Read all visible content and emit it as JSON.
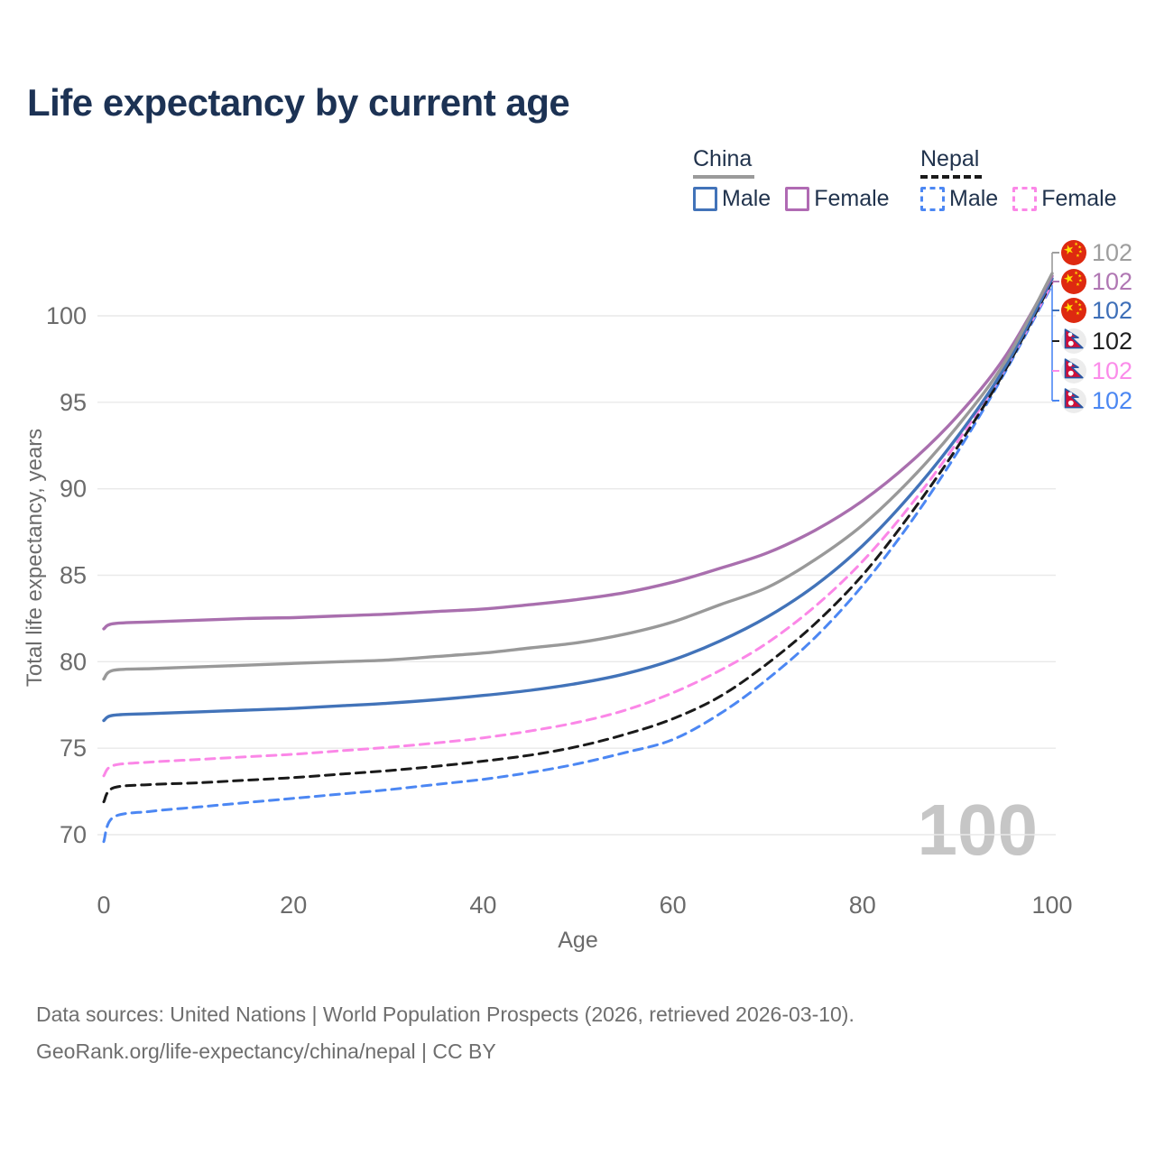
{
  "title": "Life expectancy by current age",
  "legend": {
    "groups": [
      {
        "name": "China",
        "line_style": "solid",
        "underline_color": "#9a9a9a",
        "items": [
          {
            "label": "Male",
            "color": "#4273b9",
            "dashed": false,
            "checked": false
          },
          {
            "label": "Female",
            "color": "#b06ab3",
            "dashed": false,
            "checked": false
          }
        ]
      },
      {
        "name": "Nepal",
        "line_style": "dashed",
        "underline_color": "#1a1a1a",
        "items": [
          {
            "label": "Male",
            "color": "#4c87f3",
            "dashed": true,
            "checked": false
          },
          {
            "label": "Female",
            "color": "#fb87e7",
            "dashed": true,
            "checked": false
          }
        ]
      }
    ]
  },
  "chart_data": {
    "type": "line",
    "title": "Life expectancy by current age",
    "xlabel": "Age",
    "ylabel": "Total life expectancy, years",
    "x_ticks": [
      0,
      20,
      40,
      60,
      80,
      100
    ],
    "y_ticks": [
      70,
      75,
      80,
      85,
      90,
      95,
      100
    ],
    "xlim": [
      0,
      100
    ],
    "ylim": [
      69,
      103
    ],
    "grid": "horizontal",
    "grid_color": "#e9e9e9",
    "axis_text_color": "#6b6b6b",
    "watermark": "100",
    "watermark_color": "#c6c6c6",
    "x": [
      0,
      1,
      5,
      10,
      15,
      20,
      25,
      30,
      35,
      40,
      45,
      50,
      55,
      60,
      65,
      70,
      75,
      80,
      85,
      90,
      95,
      100
    ],
    "series": [
      {
        "id": "china-all",
        "country": "China",
        "sex": "All",
        "color": "#999999",
        "dashed": false,
        "flag": "china",
        "end_label": "102",
        "label_color": "#9e9e9e",
        "values": [
          79.0,
          79.5,
          79.6,
          79.7,
          79.8,
          79.9,
          80.0,
          80.1,
          80.3,
          80.5,
          80.8,
          81.1,
          81.6,
          82.3,
          83.3,
          84.3,
          85.9,
          87.9,
          90.5,
          93.6,
          97.3,
          102.45
        ]
      },
      {
        "id": "china-female",
        "country": "China",
        "sex": "Female",
        "color": "#a96fae",
        "dashed": false,
        "flag": "china",
        "end_label": "102",
        "label_color": "#b077b3",
        "values": [
          81.9,
          82.2,
          82.3,
          82.4,
          82.5,
          82.55,
          82.65,
          82.75,
          82.9,
          83.05,
          83.3,
          83.6,
          84.0,
          84.6,
          85.4,
          86.3,
          87.6,
          89.3,
          91.5,
          94.2,
          97.6,
          102.3
        ]
      },
      {
        "id": "china-male",
        "country": "China",
        "sex": "Male",
        "color": "#4273b9",
        "dashed": false,
        "flag": "china",
        "end_label": "102",
        "label_color": "#3e6fb8",
        "values": [
          76.6,
          76.9,
          77.0,
          77.1,
          77.2,
          77.3,
          77.45,
          77.6,
          77.8,
          78.05,
          78.35,
          78.75,
          79.3,
          80.1,
          81.2,
          82.6,
          84.4,
          86.7,
          89.6,
          93.0,
          97.0,
          102.15
        ]
      },
      {
        "id": "nepal-all",
        "country": "Nepal",
        "sex": "All",
        "color": "#1a1a1a",
        "dashed": true,
        "flag": "nepal",
        "end_label": "102",
        "label_color": "#1f1f1f",
        "values": [
          71.9,
          72.7,
          72.9,
          73.0,
          73.15,
          73.3,
          73.5,
          73.7,
          73.95,
          74.25,
          74.6,
          75.1,
          75.8,
          76.7,
          78.0,
          79.9,
          82.2,
          85.0,
          88.5,
          92.4,
          96.8,
          102.0
        ]
      },
      {
        "id": "nepal-female",
        "country": "Nepal",
        "sex": "Female",
        "color": "#fb87e7",
        "dashed": true,
        "flag": "nepal",
        "end_label": "102",
        "label_color": "#fb8cea",
        "values": [
          73.4,
          74.0,
          74.2,
          74.35,
          74.5,
          74.65,
          74.85,
          75.05,
          75.3,
          75.6,
          76.0,
          76.5,
          77.2,
          78.2,
          79.5,
          81.1,
          83.2,
          85.8,
          89.0,
          92.7,
          96.9,
          101.9
        ]
      },
      {
        "id": "nepal-male",
        "country": "Nepal",
        "sex": "Male",
        "color": "#4c87f3",
        "dashed": true,
        "flag": "nepal",
        "end_label": "102",
        "label_color": "#4b87f2",
        "values": [
          69.6,
          71.0,
          71.35,
          71.6,
          71.85,
          72.1,
          72.35,
          72.6,
          72.9,
          73.2,
          73.6,
          74.1,
          74.75,
          75.5,
          77.0,
          79.0,
          81.4,
          84.4,
          88.0,
          92.1,
          96.7,
          101.78
        ]
      }
    ],
    "flag_colors": {
      "china_red": "#de2910",
      "china_star": "#ffde02",
      "nepal_crimson": "#d0103a",
      "nepal_border": "#2456a4",
      "nepal_bg": "#ececec"
    }
  },
  "footer": {
    "line1": "Data sources: United Nations | World Population Prospects (2026, retrieved 2026-03-10).",
    "line2": "GeoRank.org/life-expectancy/china/nepal | CC BY"
  }
}
